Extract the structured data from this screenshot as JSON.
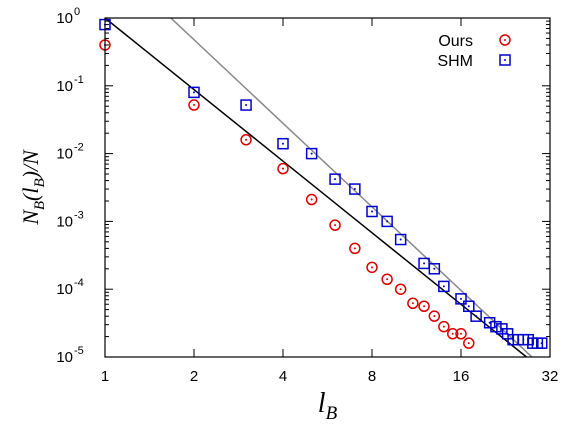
{
  "chart_data": {
    "type": "scatter",
    "xscale": "log2",
    "yscale": "log10",
    "xlim": [
      1,
      32
    ],
    "ylim": [
      1e-05,
      1
    ],
    "xticks": [
      1,
      2,
      4,
      8,
      16,
      32
    ],
    "xtick_labels": [
      "1",
      "2",
      "4",
      "8",
      "16",
      "32"
    ],
    "yticks": [
      1e-05,
      0.0001,
      0.001,
      0.01,
      0.1,
      1
    ],
    "ytick_labels": [
      {
        "base": "10",
        "exp": "-5"
      },
      {
        "base": "10",
        "exp": "-4"
      },
      {
        "base": "10",
        "exp": "-3"
      },
      {
        "base": "10",
        "exp": "-2"
      },
      {
        "base": "10",
        "exp": "-1"
      },
      {
        "base": "10",
        "exp": "0"
      }
    ],
    "xlabel": {
      "main": "l",
      "sub": "B"
    },
    "ylabel": {
      "parts": [
        "N",
        "B",
        "(",
        "l",
        "B",
        ")/N"
      ]
    },
    "legend_position": "top-right",
    "series": [
      {
        "name": "Ours",
        "marker": "circle",
        "color": "#dd0000",
        "x": [
          1,
          2,
          3,
          4,
          5,
          6,
          7,
          8,
          9,
          10,
          11,
          12,
          13,
          14,
          15,
          16,
          17,
          18,
          19,
          20,
          21
        ],
        "y": [
          0.4,
          0.052,
          0.016,
          0.006,
          0.0021,
          0.00088,
          0.0004,
          0.00021,
          0.00014,
          0.0001,
          6.2e-05,
          5.6e-05,
          4e-05,
          2.8e-05,
          2.2e-05,
          2.2e-05,
          1.6e-05,
          9.5e-06,
          9.5e-06,
          9.5e-06,
          9.5e-06
        ]
      },
      {
        "name": "SHM",
        "marker": "square",
        "color": "#0000cc",
        "x": [
          1,
          2,
          3,
          4,
          5,
          6,
          7,
          8,
          9,
          10,
          12,
          13,
          14,
          16,
          17,
          18,
          20,
          21,
          22,
          23,
          24,
          25,
          26,
          27,
          28,
          29,
          30
        ],
        "y": [
          0.8,
          0.08,
          0.052,
          0.014,
          0.01,
          0.0042,
          0.003,
          0.0014,
          0.001,
          0.00054,
          0.00024,
          0.0002,
          0.00011,
          7.2e-05,
          5.6e-05,
          4e-05,
          3.2e-05,
          2.8e-05,
          2.6e-05,
          2.2e-05,
          1.8e-05,
          1.8e-05,
          1.8e-05,
          1.8e-05,
          1.6e-05,
          1.6e-05,
          1.6e-05
        ]
      }
    ],
    "fit_lines": [
      {
        "color": "#000000",
        "x": [
          1,
          28
        ],
        "y": [
          1.0,
          8.4e-06
        ]
      },
      {
        "color": "#888888",
        "x": [
          1.67,
          29
        ],
        "y": [
          1.0,
          8.4e-06
        ]
      }
    ]
  },
  "colors": {
    "axis": "#000000",
    "ours": "#dd0000",
    "shm": "#0000cc",
    "fit_ours": "#000000",
    "fit_shm": "#888888"
  }
}
